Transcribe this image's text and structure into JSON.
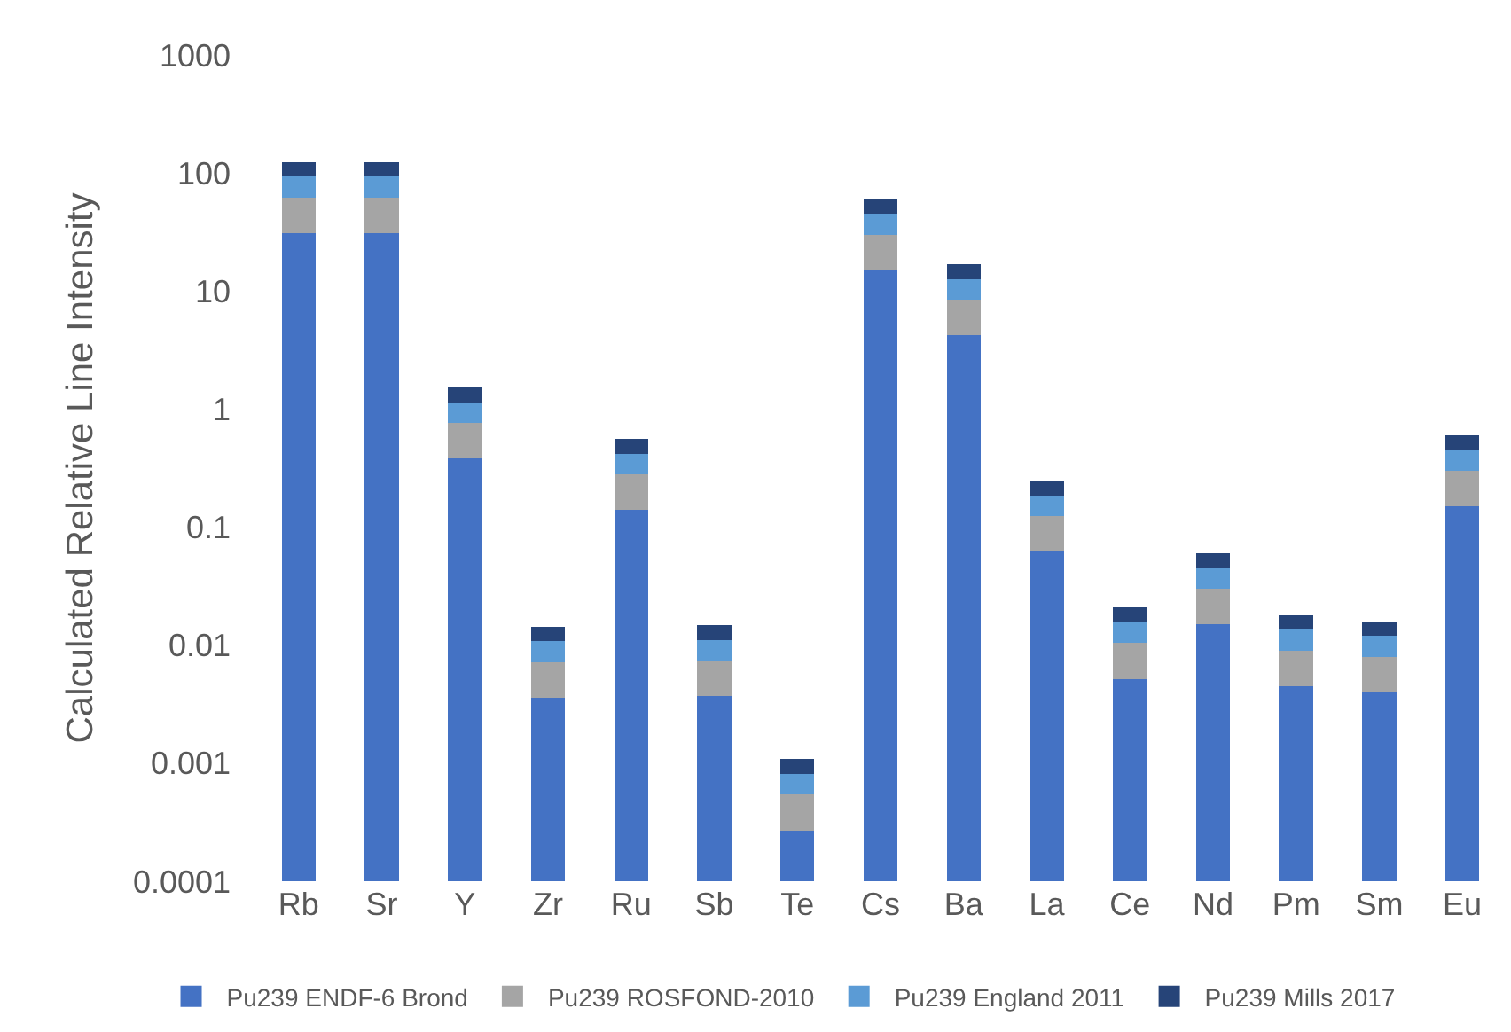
{
  "chart_data": {
    "type": "bar",
    "stacked": true,
    "log": "y",
    "ylabel": "Calculated Relative Line Intensity",
    "categories": [
      "Rb",
      "Sr",
      "Y",
      "Zr",
      "Ru",
      "Sb",
      "Te",
      "Cs",
      "Ba",
      "La",
      "Ce",
      "Nd",
      "Pm",
      "Sm",
      "Eu"
    ],
    "series": [
      {
        "name": "Pu239 ENDF-6 Brond",
        "color": "#4472c4",
        "values": [
          31,
          31,
          0.38,
          0.0036,
          0.14,
          0.0037,
          0.00027,
          15,
          4.2,
          0.062,
          0.0052,
          0.015,
          0.0045,
          0.004,
          0.15
        ]
      },
      {
        "name": "Pu239 ROSFOND-2010",
        "color": "#a5a5a5",
        "values": [
          31,
          31,
          0.38,
          0.0036,
          0.14,
          0.0037,
          0.00027,
          15,
          4.2,
          0.062,
          0.0052,
          0.015,
          0.0045,
          0.004,
          0.15
        ]
      },
      {
        "name": "Pu239 England 2011",
        "color": "#5b9bd5",
        "values": [
          31,
          31,
          0.38,
          0.0036,
          0.14,
          0.0037,
          0.00027,
          15,
          4.2,
          0.062,
          0.0052,
          0.015,
          0.0045,
          0.004,
          0.15
        ]
      },
      {
        "name": "Pu239 Mills 2017",
        "color": "#264478",
        "values": [
          31,
          31,
          0.38,
          0.0036,
          0.14,
          0.0037,
          0.00027,
          15,
          4.2,
          0.062,
          0.0052,
          0.015,
          0.0045,
          0.004,
          0.15
        ]
      }
    ],
    "ylim": [
      0.0001,
      1000
    ],
    "yticks": [
      0.0001,
      0.001,
      0.01,
      0.1,
      1,
      10,
      100,
      1000
    ],
    "grid": false,
    "legend": "bottom"
  }
}
